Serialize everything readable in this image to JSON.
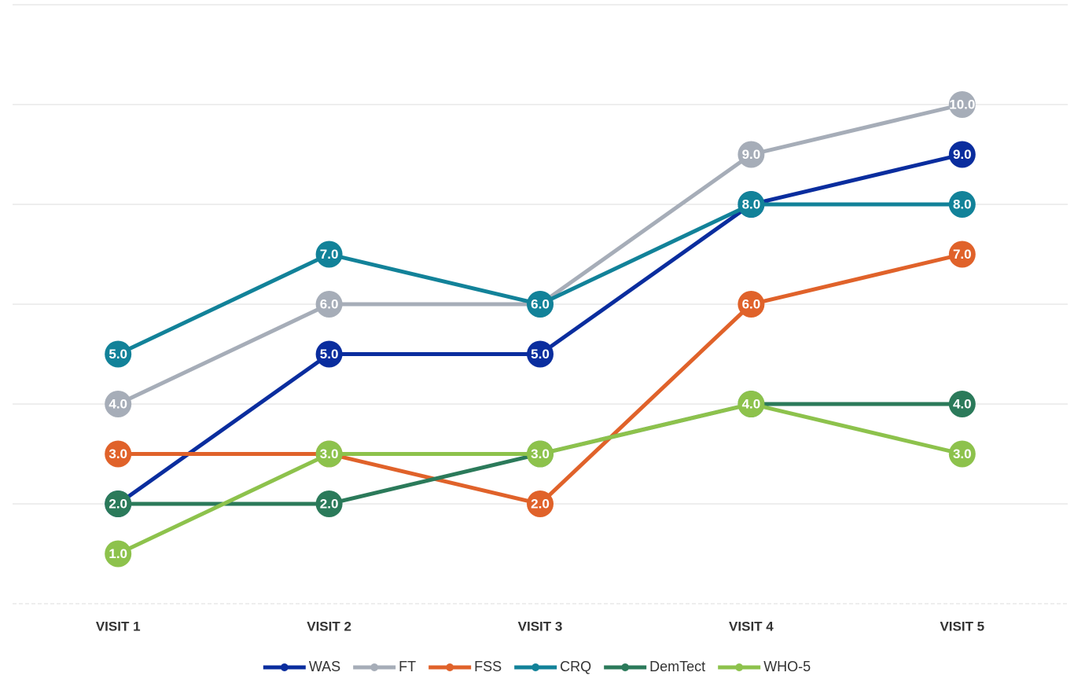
{
  "chart_data": {
    "type": "line",
    "categories": [
      "VISIT 1",
      "VISIT 2",
      "VISIT 3",
      "VISIT 4",
      "VISIT 5"
    ],
    "ylim": [
      0,
      12
    ],
    "yticks": [
      0,
      2,
      4,
      6,
      8,
      10,
      12
    ],
    "grid": true,
    "legend": "bottom",
    "series": [
      {
        "name": "WAS",
        "color": "#0a2d9e",
        "values": [
          2,
          5,
          5,
          8,
          9
        ],
        "value_labels": [
          "2.0",
          "5.0",
          "5.0",
          "8.0",
          "9.0"
        ]
      },
      {
        "name": "FT",
        "color": "#a6adb8",
        "values": [
          4,
          6,
          6,
          9,
          10
        ],
        "value_labels": [
          "4.0",
          "6.0",
          "6.0",
          "9.0",
          "10.0"
        ]
      },
      {
        "name": "FSS",
        "color": "#e0622a",
        "values": [
          3,
          3,
          2,
          6,
          7
        ],
        "value_labels": [
          "3.0",
          "3.0",
          "2.0",
          "6.0",
          "7.0"
        ]
      },
      {
        "name": "CRQ",
        "color": "#128299",
        "values": [
          5,
          7,
          6,
          8,
          8
        ],
        "value_labels": [
          "5.0",
          "7.0",
          "6.0",
          "8.0",
          "8.0"
        ]
      },
      {
        "name": "DemTect",
        "color": "#2b7a5a",
        "values": [
          2,
          2,
          3,
          4,
          4
        ],
        "value_labels": [
          "2.0",
          "2.0",
          "3.0",
          "4.0",
          "4.0"
        ]
      },
      {
        "name": "WHO-5",
        "color": "#8dc24c",
        "values": [
          1,
          3,
          3,
          4,
          3
        ],
        "value_labels": [
          "1.0",
          "3.0",
          "3.0",
          "4.0",
          "3.0"
        ]
      }
    ]
  }
}
